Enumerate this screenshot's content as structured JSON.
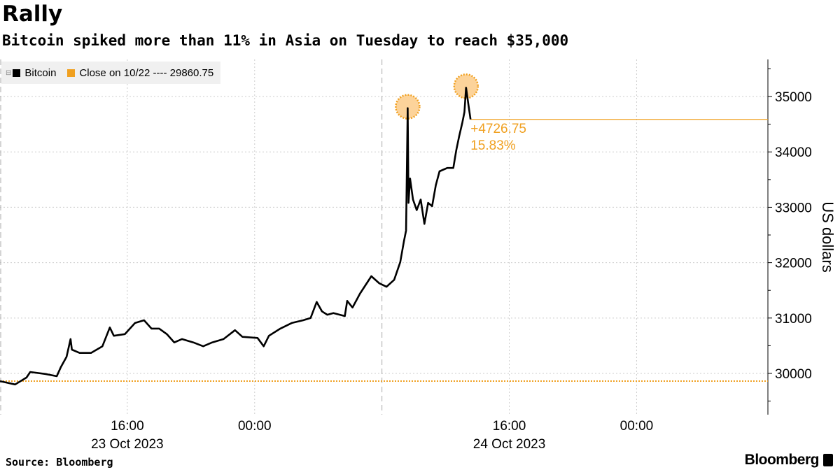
{
  "title": "Rally",
  "subtitle": "Bitcoin spiked more than 11% in Asia on Tuesday to reach $35,000",
  "legend": {
    "series": "Bitcoin",
    "close": "Close on 10/22 ---- 29860.75"
  },
  "source": "Source: Bloomberg",
  "brand": "Bloomberg",
  "colors": {
    "line": "#000000",
    "accent": "#f0a020"
  },
  "chart_data": {
    "type": "line",
    "ylabel": "US dollars",
    "ylim": [
      29255,
      35670
    ],
    "xlim": [
      "2023-10-23T08:00",
      "2023-10-25T08:15"
    ],
    "yticks": [
      30000,
      31000,
      32000,
      33000,
      34000,
      35000
    ],
    "xticks": [
      {
        "t": "2023-10-23T16:00",
        "label": "16:00"
      },
      {
        "t": "2023-10-24T00:00",
        "label": "00:00"
      },
      {
        "t": "2023-10-24T16:00",
        "label": "16:00"
      },
      {
        "t": "2023-10-25T00:00",
        "label": "00:00"
      }
    ],
    "date_labels": [
      {
        "t": "2023-10-23T16:00",
        "label": "23 Oct 2023"
      },
      {
        "t": "2023-10-24T16:00",
        "label": "24 Oct 2023"
      }
    ],
    "day_dividers": [
      "2023-10-23T08:00",
      "2023-10-24T08:00"
    ],
    "grid": true,
    "reference_line": {
      "label": "Close on 10/22",
      "value": 29860.75
    },
    "annotation": {
      "change": "+4726.75",
      "percent": "15.83%",
      "value": 34587.5
    },
    "highlights": [
      {
        "t": "2023-10-24T09:37",
        "v": 34790
      },
      {
        "t": "2023-10-24T13:17",
        "v": 35160
      }
    ],
    "series": [
      {
        "name": "Bitcoin",
        "points": [
          [
            "2023-10-23T08:00",
            29860
          ],
          [
            "2023-10-23T08:57",
            29800
          ],
          [
            "2023-10-23T09:40",
            29925
          ],
          [
            "2023-10-23T09:54",
            30025
          ],
          [
            "2023-10-23T10:51",
            29990
          ],
          [
            "2023-10-23T11:34",
            29950
          ],
          [
            "2023-10-23T11:49",
            30110
          ],
          [
            "2023-10-23T12:11",
            30300
          ],
          [
            "2023-10-23T12:26",
            30620
          ],
          [
            "2023-10-23T12:31",
            30430
          ],
          [
            "2023-10-23T13:00",
            30370
          ],
          [
            "2023-10-23T13:43",
            30370
          ],
          [
            "2023-10-23T14:26",
            30490
          ],
          [
            "2023-10-23T14:54",
            30830
          ],
          [
            "2023-10-23T15:09",
            30680
          ],
          [
            "2023-10-23T15:51",
            30710
          ],
          [
            "2023-10-23T16:29",
            30910
          ],
          [
            "2023-10-23T17:03",
            30960
          ],
          [
            "2023-10-23T17:31",
            30810
          ],
          [
            "2023-10-23T18:00",
            30810
          ],
          [
            "2023-10-23T18:29",
            30710
          ],
          [
            "2023-10-23T18:57",
            30560
          ],
          [
            "2023-10-23T19:26",
            30620
          ],
          [
            "2023-10-23T20:09",
            30560
          ],
          [
            "2023-10-23T20:46",
            30490
          ],
          [
            "2023-10-23T21:20",
            30560
          ],
          [
            "2023-10-23T22:03",
            30620
          ],
          [
            "2023-10-23T22:46",
            30780
          ],
          [
            "2023-10-23T23:14",
            30660
          ],
          [
            "2023-10-24T00:11",
            30640
          ],
          [
            "2023-10-24T00:34",
            30490
          ],
          [
            "2023-10-24T00:54",
            30680
          ],
          [
            "2023-10-24T01:37",
            30810
          ],
          [
            "2023-10-24T02:20",
            30910
          ],
          [
            "2023-10-24T03:03",
            30960
          ],
          [
            "2023-10-24T03:31",
            31000
          ],
          [
            "2023-10-24T03:54",
            31290
          ],
          [
            "2023-10-24T04:14",
            31120
          ],
          [
            "2023-10-24T04:34",
            31060
          ],
          [
            "2023-10-24T04:57",
            31090
          ],
          [
            "2023-10-24T05:40",
            31035
          ],
          [
            "2023-10-24T05:49",
            31310
          ],
          [
            "2023-10-24T06:09",
            31190
          ],
          [
            "2023-10-24T06:37",
            31440
          ],
          [
            "2023-10-24T07:20",
            31755
          ],
          [
            "2023-10-24T07:49",
            31630
          ],
          [
            "2023-10-24T08:17",
            31565
          ],
          [
            "2023-10-24T08:46",
            31690
          ],
          [
            "2023-10-24T09:09",
            32010
          ],
          [
            "2023-10-24T09:23",
            32390
          ],
          [
            "2023-10-24T09:31",
            32580
          ],
          [
            "2023-10-24T09:37",
            34790
          ],
          [
            "2023-10-24T09:40",
            33080
          ],
          [
            "2023-10-24T09:46",
            33520
          ],
          [
            "2023-10-24T09:57",
            33140
          ],
          [
            "2023-10-24T10:11",
            32950
          ],
          [
            "2023-10-24T10:26",
            33140
          ],
          [
            "2023-10-24T10:40",
            32700
          ],
          [
            "2023-10-24T10:54",
            33080
          ],
          [
            "2023-10-24T11:09",
            33020
          ],
          [
            "2023-10-24T11:23",
            33400
          ],
          [
            "2023-10-24T11:37",
            33650
          ],
          [
            "2023-10-24T12:06",
            33710
          ],
          [
            "2023-10-24T12:29",
            33710
          ],
          [
            "2023-10-24T12:40",
            34030
          ],
          [
            "2023-10-24T12:51",
            34280
          ],
          [
            "2023-10-24T13:03",
            34530
          ],
          [
            "2023-10-24T13:11",
            34720
          ],
          [
            "2023-10-24T13:17",
            35160
          ],
          [
            "2023-10-24T13:26",
            34850
          ],
          [
            "2023-10-24T13:34",
            34587.5
          ]
        ]
      }
    ]
  }
}
